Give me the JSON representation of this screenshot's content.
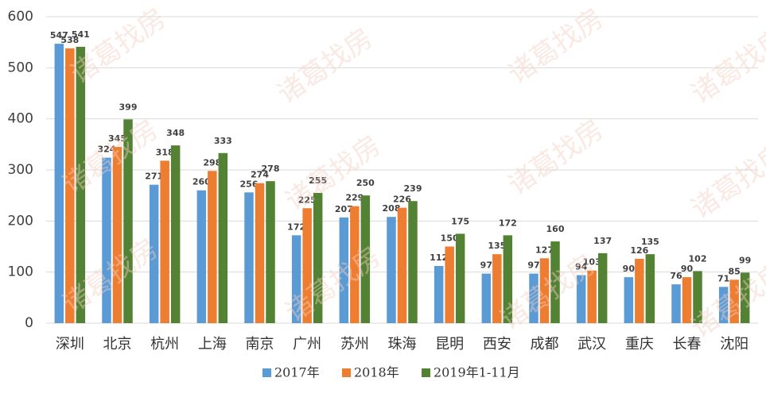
{
  "chart_data": {
    "type": "bar",
    "watermark": "诸葛找房",
    "categories": [
      "深圳",
      "北京",
      "杭州",
      "上海",
      "南京",
      "广州",
      "苏州",
      "珠海",
      "昆明",
      "西安",
      "成都",
      "武汉",
      "重庆",
      "长春",
      "沈阳"
    ],
    "series": [
      {
        "name": "2017年",
        "color": "#5b9bd5",
        "values": [
          547,
          324,
          271,
          260,
          256,
          172,
          207,
          208,
          112,
          97,
          97,
          94,
          90,
          76,
          71
        ]
      },
      {
        "name": "2018年",
        "color": "#ed7d31",
        "values": [
          538,
          345,
          318,
          298,
          274,
          225,
          229,
          226,
          150,
          135,
          127,
          103,
          126,
          90,
          85
        ]
      },
      {
        "name": "2019年1-11月",
        "color": "#548235",
        "values": [
          541,
          399,
          348,
          333,
          278,
          255,
          250,
          239,
          175,
          172,
          160,
          137,
          135,
          102,
          99
        ]
      }
    ],
    "ylim": [
      0,
      600
    ],
    "yticks": [
      0,
      100,
      200,
      300,
      400,
      500,
      600
    ],
    "grid": true,
    "legend": "bottom"
  }
}
